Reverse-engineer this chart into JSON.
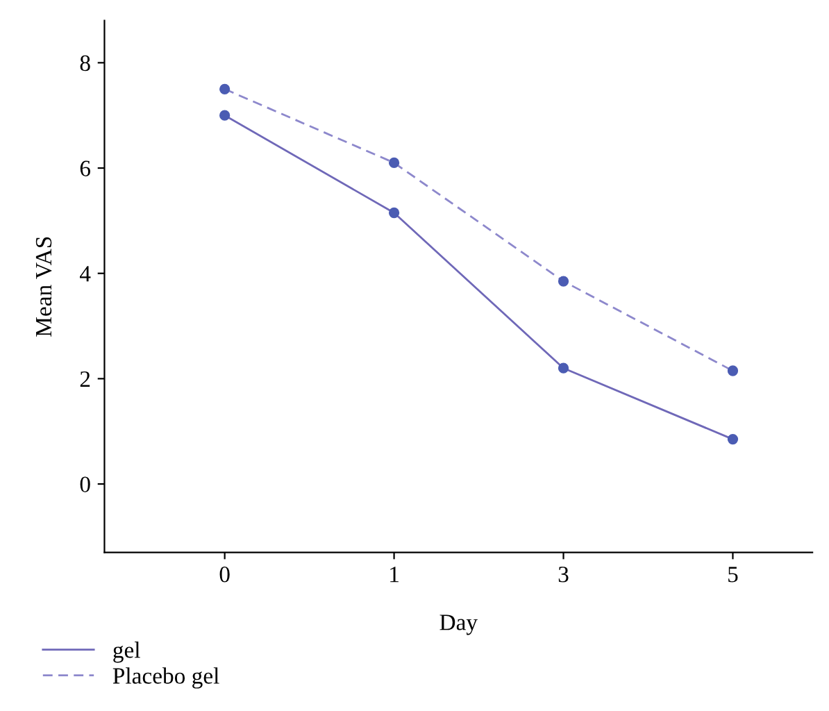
{
  "chart_data": {
    "type": "line",
    "xlabel": "Day",
    "ylabel": "Mean VAS",
    "categories": [
      "0",
      "1",
      "3",
      "5"
    ],
    "series": [
      {
        "name": "gel",
        "color": "#6f68b8",
        "values": [
          7.0,
          5.15,
          2.2,
          0.85
        ],
        "line_style": "solid"
      },
      {
        "name": "Placebo gel",
        "color": "#8d88cc",
        "values": [
          7.5,
          6.1,
          3.85,
          2.15
        ],
        "line_style": "dashed"
      }
    ],
    "ylim": [
      -1.3,
      8.8
    ],
    "yticks": [
      0,
      2,
      4,
      6,
      8
    ],
    "marker": "circle",
    "grid": false,
    "legend": "bottom left"
  }
}
